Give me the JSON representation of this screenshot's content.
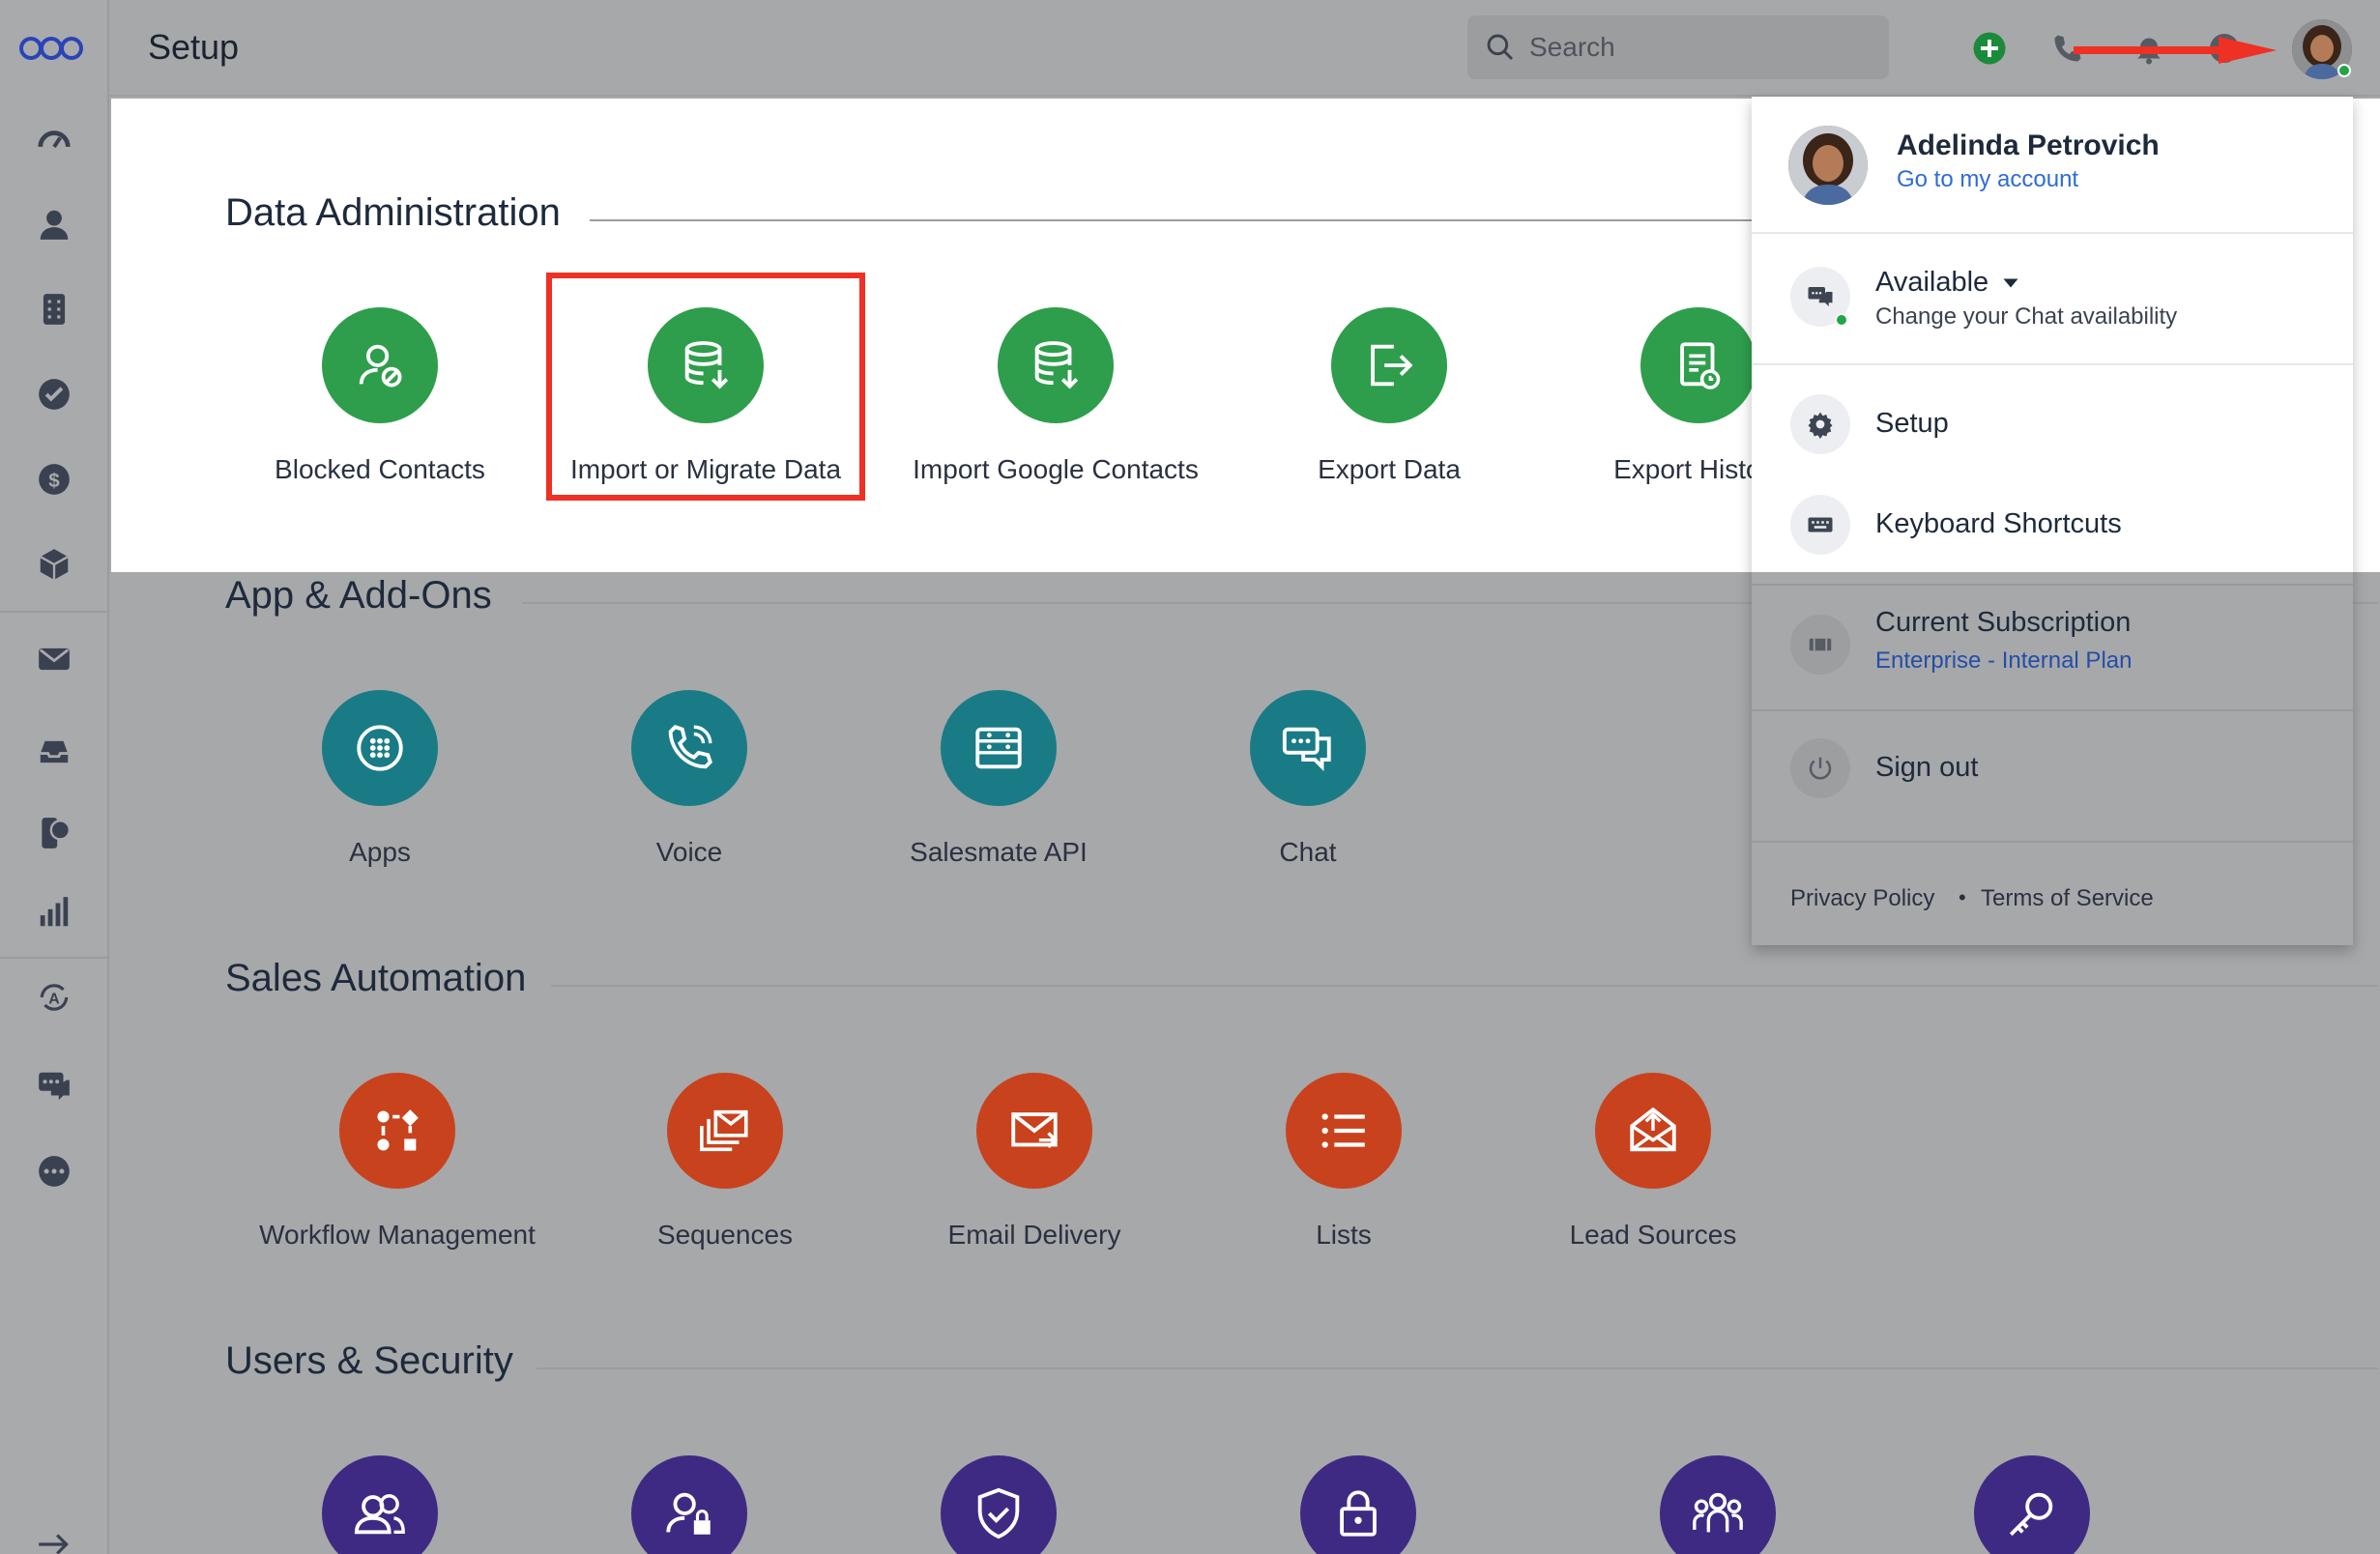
{
  "header": {
    "title": "Setup",
    "search_placeholder": "Search"
  },
  "sections": [
    {
      "title": "Data Administration",
      "color": "#2e9e4c",
      "tiles": [
        {
          "label": "Blocked Contacts",
          "icon": "user-block-icon"
        },
        {
          "label": "Import or Migrate Data",
          "icon": "database-import-icon"
        },
        {
          "label": "Import Google Contacts",
          "icon": "database-import-icon"
        },
        {
          "label": "Export Data",
          "icon": "export-icon"
        },
        {
          "label": "Export History",
          "icon": "document-clock-icon"
        }
      ]
    },
    {
      "title": "App & Add-Ons",
      "color": "#197b86",
      "tiles": [
        {
          "label": "Apps",
          "icon": "apps-grid-icon"
        },
        {
          "label": "Voice",
          "icon": "phone-icon"
        },
        {
          "label": "Salesmate API",
          "icon": "api-icon"
        },
        {
          "label": "Chat",
          "icon": "chat-icon"
        }
      ]
    },
    {
      "title": "Sales Automation",
      "color": "#c8421d",
      "tiles": [
        {
          "label": "Workflow Management",
          "icon": "workflow-icon"
        },
        {
          "label": "Sequences",
          "icon": "sequences-icon"
        },
        {
          "label": "Email Delivery",
          "icon": "email-send-icon"
        },
        {
          "label": "Lists",
          "icon": "list-icon"
        },
        {
          "label": "Lead Sources",
          "icon": "envelope-open-icon"
        }
      ]
    },
    {
      "title": "Users & Security",
      "color": "#3e2a83",
      "tiles": [
        {
          "label": "",
          "icon": "users-icon"
        },
        {
          "label": "",
          "icon": "user-lock-icon"
        },
        {
          "label": "",
          "icon": "shield-check-icon"
        },
        {
          "label": "",
          "icon": "lock-icon"
        },
        {
          "label": "",
          "icon": "team-icon"
        },
        {
          "label": "",
          "icon": "key-icon"
        }
      ]
    }
  ],
  "dropdown": {
    "user_name": "Adelinda Petrovich",
    "account_link": "Go to my account",
    "status": "Available",
    "status_sub": "Change your Chat availability",
    "setup": "Setup",
    "shortcuts": "Keyboard Shortcuts",
    "subscription": "Current Subscription",
    "plan": "Enterprise - Internal Plan",
    "signout": "Sign out",
    "privacy": "Privacy Policy",
    "terms": "Terms of Service"
  },
  "colors": {
    "highlight": "#ee3124",
    "link": "#2f6bd6",
    "online": "#21a546"
  }
}
